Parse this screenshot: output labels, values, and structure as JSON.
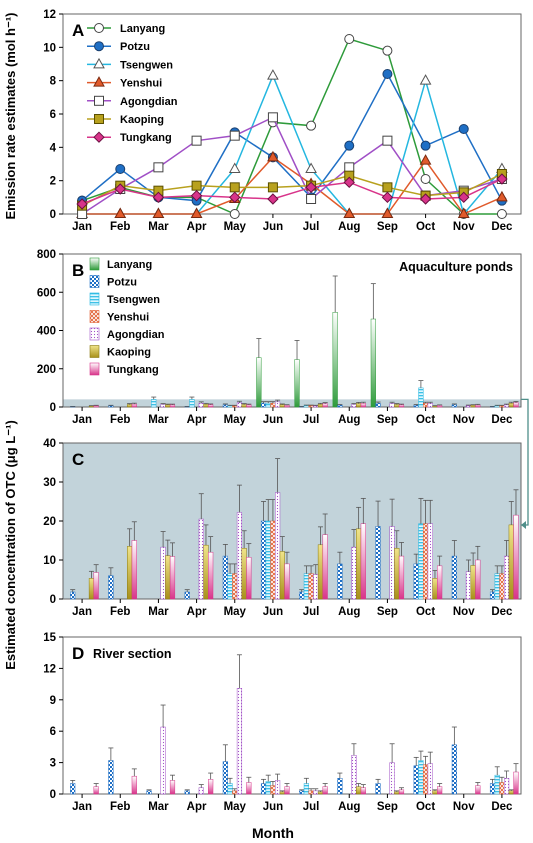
{
  "figure": {
    "ylabel_top": "Emission rate estimates (mol h⁻¹)",
    "ylabel_bottom": "Estimated concentration of OTC (μg L⁻¹)",
    "xlabel": "Month"
  },
  "colors": {
    "Lanyang": "#2e9b3a",
    "Potzu": "#1f6fc5",
    "Tsengwen": "#24b7e0",
    "Yenshui": "#e05a2b",
    "Agongdian": "#a04fc6",
    "Kaoping": "#b8a11e",
    "Tungkang": "#d8348a",
    "shade": "#c2d3da",
    "bracket": "#4f8f8a"
  },
  "chart_data": [
    {
      "panel": "A",
      "type": "line",
      "title": "",
      "ylabel": "Emission rate estimates (mol h⁻¹)",
      "ylim": [
        0,
        12
      ],
      "yticks": [
        0,
        2,
        4,
        6,
        8,
        10,
        12
      ],
      "categories": [
        "Jan",
        "Feb",
        "Mar",
        "Apr",
        "May",
        "Jun",
        "Jul",
        "Aug",
        "Sep",
        "Oct",
        "Nov",
        "Dec"
      ],
      "legend": "top-left",
      "series": [
        {
          "name": "Lanyang",
          "marker": "circle",
          "values": [
            0.8,
            1.6,
            1.0,
            1.0,
            0.0,
            5.5,
            5.3,
            10.5,
            9.8,
            2.1,
            0.0,
            0.0
          ]
        },
        {
          "name": "Potzu",
          "marker": "circle-filled",
          "values": [
            0.8,
            2.7,
            1.0,
            0.8,
            4.9,
            3.4,
            1.0,
            4.1,
            8.4,
            4.1,
            5.1,
            0.8
          ]
        },
        {
          "name": "Tsengwen",
          "marker": "triangle",
          "values": [
            0.0,
            0.0,
            0.0,
            0.0,
            2.7,
            8.3,
            2.7,
            0.0,
            0.0,
            8.0,
            0.0,
            2.7
          ]
        },
        {
          "name": "Yenshui",
          "marker": "triangle-filled",
          "values": [
            0.0,
            0.0,
            0.0,
            0.0,
            0.9,
            3.4,
            1.8,
            0.0,
            0.0,
            3.2,
            0.0,
            1.0
          ]
        },
        {
          "name": "Agongdian",
          "marker": "square",
          "values": [
            0.0,
            1.5,
            2.8,
            4.4,
            4.7,
            5.8,
            0.9,
            2.8,
            4.4,
            1.1,
            1.4,
            2.1
          ]
        },
        {
          "name": "Kaoping",
          "marker": "square-filled",
          "values": [
            0.5,
            1.7,
            1.4,
            1.7,
            1.6,
            1.6,
            1.7,
            2.3,
            1.6,
            1.1,
            1.3,
            2.4
          ]
        },
        {
          "name": "Tungkang",
          "marker": "diamond",
          "values": [
            0.6,
            1.5,
            1.0,
            1.1,
            1.0,
            0.9,
            1.6,
            1.9,
            1.0,
            0.9,
            1.0,
            2.1
          ]
        }
      ]
    },
    {
      "panel": "B",
      "type": "bar",
      "title": "Aquaculture ponds",
      "ylim": [
        0,
        800
      ],
      "yticks": [
        0,
        200,
        400,
        600,
        800
      ],
      "categories": [
        "Jan",
        "Feb",
        "Mar",
        "Apr",
        "May",
        "Jun",
        "Jul",
        "Aug",
        "Sep",
        "Oct",
        "Nov",
        "Dec"
      ],
      "legend": "top-left",
      "series_names": [
        "Lanyang",
        "Potzu",
        "Tsengwen",
        "Yenshui",
        "Agongdian",
        "Kaoping",
        "Tungkang"
      ],
      "series": [
        {
          "name": "Lanyang",
          "values": [
            0,
            0,
            0,
            0,
            0,
            258,
            248,
            495,
            460,
            0,
            0,
            0
          ],
          "errors": [
            0,
            0,
            0,
            0,
            0,
            100,
            100,
            190,
            185,
            0,
            0,
            0
          ]
        },
        {
          "name": "Potzu",
          "values": [
            2,
            6,
            0,
            2,
            11,
            20,
            2,
            9,
            19,
            9,
            11,
            2
          ],
          "errors": [
            1,
            3,
            0,
            1,
            5,
            8,
            1,
            4,
            7,
            4,
            5,
            1
          ]
        },
        {
          "name": "Tsengwen",
          "values": [
            0,
            0,
            40,
            40,
            6,
            20,
            7,
            0,
            0,
            100,
            0,
            6
          ],
          "errors": [
            0,
            0,
            12,
            12,
            3,
            8,
            3,
            0,
            0,
            38,
            0,
            3
          ]
        },
        {
          "name": "Yenshui",
          "values": [
            0,
            0,
            0,
            0,
            6,
            20,
            7,
            0,
            0,
            19,
            0,
            6
          ],
          "errors": [
            0,
            0,
            0,
            0,
            3,
            8,
            3,
            0,
            0,
            6,
            0,
            3
          ]
        },
        {
          "name": "Agongdian",
          "values": [
            0,
            0,
            13,
            20,
            22,
            27,
            6,
            13,
            18,
            19,
            7,
            11
          ],
          "errors": [
            0,
            0,
            5,
            7,
            8,
            9,
            3,
            5,
            7,
            6,
            3,
            4
          ]
        },
        {
          "name": "Kaoping",
          "values": [
            5,
            13,
            11,
            14,
            13,
            12,
            14,
            18,
            13,
            5,
            9,
            19
          ],
          "errors": [
            2,
            5,
            4,
            5,
            5,
            4,
            5,
            6,
            5,
            2,
            3,
            6
          ]
        },
        {
          "name": "Tungkang",
          "values": [
            7,
            15,
            11,
            12,
            11,
            9,
            17,
            19,
            11,
            8,
            10,
            22
          ],
          "errors": [
            2,
            5,
            4,
            4,
            4,
            3,
            6,
            6,
            4,
            3,
            4,
            7
          ]
        }
      ]
    },
    {
      "panel": "C",
      "type": "bar",
      "title": "",
      "ylim": [
        0,
        40
      ],
      "yticks": [
        0,
        10,
        20,
        30,
        40
      ],
      "categories": [
        "Jan",
        "Feb",
        "Mar",
        "Apr",
        "May",
        "Jun",
        "Jul",
        "Aug",
        "Sep",
        "Oct",
        "Nov",
        "Dec"
      ],
      "series": [
        {
          "name": "Lanyang",
          "values": [
            0,
            0,
            0,
            0,
            0,
            0,
            0,
            0,
            0,
            0,
            0,
            0
          ],
          "errors": [
            0,
            0,
            0,
            0,
            0,
            0,
            0,
            0,
            0,
            0,
            0,
            0
          ]
        },
        {
          "name": "Potzu",
          "values": [
            1.8,
            6,
            0,
            1.8,
            11,
            20,
            1.8,
            9,
            18.6,
            9,
            11,
            1.8
          ],
          "errors": [
            0.6,
            2,
            0,
            0.6,
            3,
            5,
            0.6,
            3,
            6.5,
            2.5,
            4,
            0.6
          ]
        },
        {
          "name": "Tsengwen",
          "values": [
            0,
            0,
            0,
            0,
            6.5,
            20,
            6.5,
            0,
            0,
            19.3,
            0,
            6.5
          ],
          "errors": [
            0,
            0,
            0,
            0,
            2.5,
            5.5,
            2,
            0,
            0,
            6.5,
            0,
            2
          ]
        },
        {
          "name": "Yenshui",
          "values": [
            0,
            0,
            0,
            0,
            6.5,
            20,
            6.5,
            0,
            0,
            19.3,
            0,
            6.5
          ],
          "errors": [
            0,
            0,
            0,
            0,
            2.5,
            5.5,
            2,
            0,
            0,
            6,
            0,
            2
          ]
        },
        {
          "name": "Agongdian",
          "values": [
            0,
            0,
            13.3,
            20.5,
            22.2,
            27.3,
            6.3,
            13.3,
            18.6,
            19.3,
            7,
            11
          ],
          "errors": [
            0,
            0,
            4,
            6.5,
            7,
            8.7,
            2.5,
            4.5,
            7,
            6,
            3,
            4
          ]
        },
        {
          "name": "Kaoping",
          "values": [
            5.3,
            13.5,
            11.1,
            13.8,
            13,
            12.2,
            13.9,
            18,
            13,
            5.3,
            8.6,
            19
          ],
          "errors": [
            1.8,
            4.5,
            4,
            5.2,
            4.5,
            3.8,
            4.6,
            5.5,
            4.5,
            2,
            3.2,
            6
          ]
        },
        {
          "name": "Tungkang",
          "values": [
            6.8,
            15,
            10.9,
            12,
            10.7,
            9,
            16.5,
            19.3,
            11,
            8.5,
            10,
            21.5
          ],
          "errors": [
            2,
            4.8,
            3.5,
            4,
            3.5,
            3,
            5.3,
            6.5,
            3.5,
            2.5,
            3.5,
            6.5
          ]
        }
      ]
    },
    {
      "panel": "D",
      "type": "bar",
      "title": "River section",
      "ylim": [
        0,
        15
      ],
      "yticks": [
        0,
        3,
        6,
        9,
        12,
        15
      ],
      "categories": [
        "Jan",
        "Feb",
        "Mar",
        "Apr",
        "May",
        "Jun",
        "Jul",
        "Aug",
        "Sep",
        "Oct",
        "Nov",
        "Dec"
      ],
      "series": [
        {
          "name": "Lanyang",
          "values": [
            0,
            0,
            0,
            0,
            0,
            0,
            0,
            0,
            0,
            0,
            0,
            0
          ],
          "errors": [
            0,
            0,
            0,
            0,
            0,
            0,
            0,
            0,
            0,
            0,
            0,
            0
          ]
        },
        {
          "name": "Potzu",
          "values": [
            1.0,
            3.2,
            0.3,
            0.3,
            3.1,
            1.0,
            0.3,
            1.5,
            1.0,
            2.7,
            4.7,
            1.0
          ],
          "errors": [
            0.3,
            1.2,
            0.1,
            0.1,
            1.6,
            0.4,
            0.1,
            0.5,
            0.4,
            0.8,
            1.7,
            0.4
          ]
        },
        {
          "name": "Tsengwen",
          "values": [
            0,
            0,
            0,
            0,
            1.0,
            1.2,
            1.0,
            0,
            0,
            3.2,
            0,
            1.8
          ],
          "errors": [
            0,
            0,
            0,
            0,
            0.5,
            0.6,
            0.5,
            0,
            0,
            0.9,
            0,
            0.8
          ]
        },
        {
          "name": "Yenshui",
          "values": [
            0,
            0,
            0,
            0,
            0.3,
            0.8,
            0.3,
            0,
            0,
            2.8,
            0,
            1.1
          ],
          "errors": [
            0,
            0,
            0,
            0,
            0.2,
            0.4,
            0.2,
            0,
            0,
            0.8,
            0,
            0.5
          ]
        },
        {
          "name": "Agongdian",
          "values": [
            0,
            0,
            6.4,
            0.6,
            10.1,
            1.3,
            0.3,
            3.7,
            3.0,
            2.9,
            0,
            1.5
          ],
          "errors": [
            0,
            0,
            2.1,
            0.3,
            3.2,
            0.6,
            0.2,
            1.1,
            1.8,
            1.1,
            0,
            0.7
          ]
        },
        {
          "name": "Kaoping",
          "values": [
            0,
            0,
            0,
            0,
            0,
            0.2,
            0.2,
            0.7,
            0.2,
            0.3,
            0,
            0.3
          ],
          "errors": [
            0,
            0,
            0,
            0,
            0,
            0.1,
            0.1,
            0.3,
            0.1,
            0.1,
            0,
            0.1
          ]
        },
        {
          "name": "Tungkang",
          "values": [
            0.7,
            1.7,
            1.3,
            1.4,
            1.1,
            0.7,
            0.7,
            0.6,
            0.4,
            0.7,
            0.8,
            2.1
          ],
          "errors": [
            0.3,
            0.7,
            0.5,
            0.6,
            0.5,
            0.3,
            0.3,
            0.3,
            0.2,
            0.3,
            0.3,
            0.8
          ]
        }
      ]
    }
  ]
}
